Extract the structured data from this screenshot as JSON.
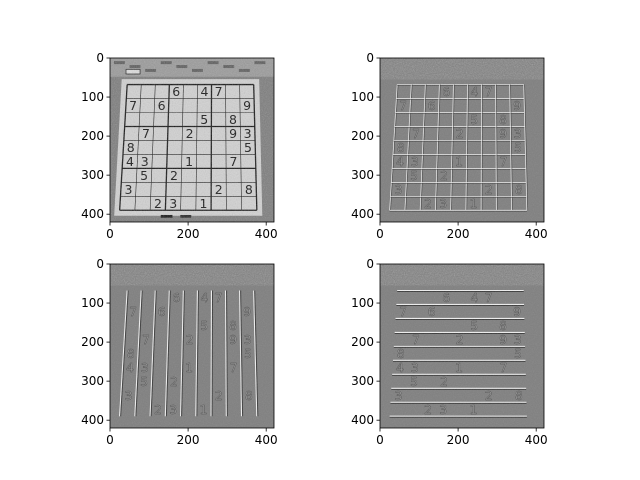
{
  "chart_data": [
    {
      "type": "image",
      "variant": "grayscale",
      "x_ticks": [
        0,
        200,
        400
      ],
      "y_ticks": [
        0,
        100,
        200,
        300,
        400
      ],
      "xlim": [
        0,
        420
      ],
      "ylim": [
        420,
        0
      ],
      "cells": [
        {
          "text": "6",
          "col": 4,
          "row": 1
        },
        {
          "text": "4",
          "col": 6,
          "row": 1
        },
        {
          "text": "7",
          "col": 7,
          "row": 1
        },
        {
          "text": "7",
          "col": 1,
          "row": 2
        },
        {
          "text": "6",
          "col": 3,
          "row": 2
        },
        {
          "text": "9",
          "col": 9,
          "row": 2
        },
        {
          "text": "5",
          "col": 6,
          "row": 3
        },
        {
          "text": "8",
          "col": 8,
          "row": 3
        },
        {
          "text": "7",
          "col": 2,
          "row": 4
        },
        {
          "text": "2",
          "col": 5,
          "row": 4
        },
        {
          "text": "9",
          "col": 8,
          "row": 4
        },
        {
          "text": "3",
          "col": 9,
          "row": 4
        },
        {
          "text": "8",
          "col": 1,
          "row": 5
        },
        {
          "text": "5",
          "col": 9,
          "row": 5
        },
        {
          "text": "4",
          "col": 1,
          "row": 6
        },
        {
          "text": "3",
          "col": 2,
          "row": 6
        },
        {
          "text": "1",
          "col": 5,
          "row": 6
        },
        {
          "text": "7",
          "col": 8,
          "row": 6
        },
        {
          "text": "5",
          "col": 2,
          "row": 7
        },
        {
          "text": "2",
          "col": 4,
          "row": 7
        },
        {
          "text": "3",
          "col": 1,
          "row": 8
        },
        {
          "text": "2",
          "col": 7,
          "row": 8
        },
        {
          "text": "8",
          "col": 9,
          "row": 8
        },
        {
          "text": "2",
          "col": 3,
          "row": 9
        },
        {
          "text": "3",
          "col": 4,
          "row": 9
        },
        {
          "text": "1",
          "col": 6,
          "row": 9
        }
      ]
    },
    {
      "type": "image",
      "variant": "laplacian-edges",
      "x_ticks": [
        0,
        200,
        400
      ],
      "y_ticks": [
        0,
        100,
        200,
        300,
        400
      ],
      "xlim": [
        0,
        420
      ],
      "ylim": [
        420,
        0
      ]
    },
    {
      "type": "image",
      "variant": "sobel-x",
      "x_ticks": [
        0,
        200,
        400
      ],
      "y_ticks": [
        0,
        100,
        200,
        300,
        400
      ],
      "xlim": [
        0,
        420
      ],
      "ylim": [
        420,
        0
      ]
    },
    {
      "type": "image",
      "variant": "sobel-y",
      "x_ticks": [
        0,
        200,
        400
      ],
      "y_ticks": [
        0,
        100,
        200,
        300,
        400
      ],
      "xlim": [
        0,
        420
      ],
      "ylim": [
        420,
        0
      ]
    }
  ]
}
